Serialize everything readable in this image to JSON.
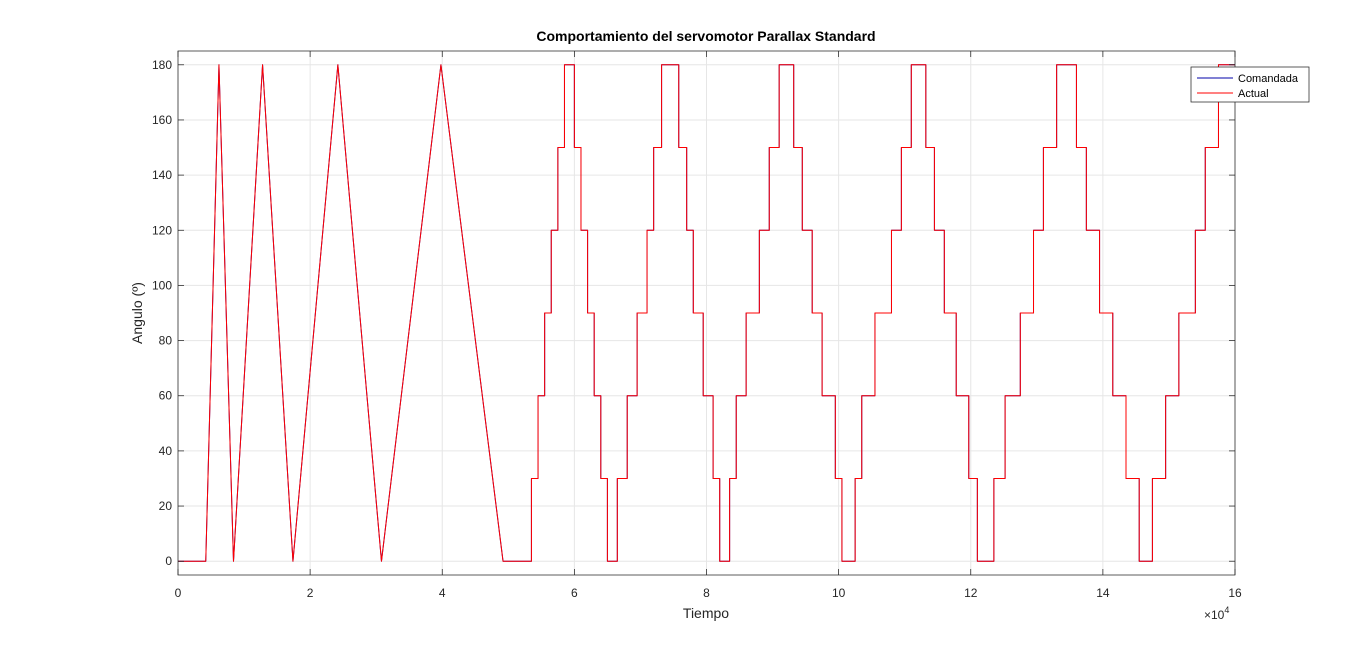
{
  "chart_data": {
    "type": "line",
    "title": "Comportamiento del servomotor Parallax Standard",
    "xlabel": "Tiempo",
    "ylabel": "Angulo (º)",
    "x_exponent_label": "×10",
    "x_exponent_power": "4",
    "xlim": [
      0,
      16
    ],
    "ylim": [
      -5,
      185
    ],
    "xticks": [
      0,
      2,
      4,
      6,
      8,
      10,
      12,
      14,
      16
    ],
    "xtick_labels": [
      "0",
      "2",
      "4",
      "6",
      "8",
      "10",
      "12",
      "14",
      "16"
    ],
    "yticks": [
      0,
      20,
      40,
      60,
      80,
      100,
      120,
      140,
      160,
      180
    ],
    "ytick_labels": [
      "0",
      "20",
      "40",
      "60",
      "80",
      "100",
      "120",
      "140",
      "160",
      "180"
    ],
    "grid": true,
    "legend_position": "top-right",
    "series": [
      {
        "name": "Comandada",
        "color": "#0000aa",
        "points": [
          [
            0,
            0
          ],
          [
            0.42,
            0
          ],
          [
            0.62,
            180
          ],
          [
            0.84,
            0
          ],
          [
            1.28,
            180
          ],
          [
            1.74,
            0
          ],
          [
            2.42,
            180
          ],
          [
            3.08,
            0
          ],
          [
            3.98,
            180
          ],
          [
            4.92,
            0
          ],
          [
            5.35,
            0
          ],
          [
            5.35,
            30
          ],
          [
            5.45,
            30
          ],
          [
            5.45,
            60
          ],
          [
            5.55,
            60
          ],
          [
            5.55,
            90
          ],
          [
            5.65,
            90
          ],
          [
            5.65,
            120
          ],
          [
            5.75,
            120
          ],
          [
            5.75,
            150
          ],
          [
            5.85,
            150
          ],
          [
            5.85,
            180
          ],
          [
            6.0,
            180
          ],
          [
            6.0,
            150
          ],
          [
            6.1,
            150
          ],
          [
            6.1,
            120
          ],
          [
            6.2,
            120
          ],
          [
            6.2,
            90
          ],
          [
            6.3,
            90
          ],
          [
            6.3,
            60
          ],
          [
            6.4,
            60
          ],
          [
            6.4,
            30
          ],
          [
            6.5,
            30
          ],
          [
            6.5,
            0
          ],
          [
            6.65,
            0
          ],
          [
            6.65,
            30
          ],
          [
            6.8,
            30
          ],
          [
            6.8,
            60
          ],
          [
            6.95,
            60
          ],
          [
            6.95,
            90
          ],
          [
            7.1,
            90
          ],
          [
            7.1,
            120
          ],
          [
            7.2,
            120
          ],
          [
            7.2,
            150
          ],
          [
            7.32,
            150
          ],
          [
            7.32,
            180
          ],
          [
            7.58,
            180
          ],
          [
            7.58,
            150
          ],
          [
            7.7,
            150
          ],
          [
            7.7,
            120
          ],
          [
            7.8,
            120
          ],
          [
            7.8,
            90
          ],
          [
            7.95,
            90
          ],
          [
            7.95,
            60
          ],
          [
            8.1,
            60
          ],
          [
            8.1,
            30
          ],
          [
            8.2,
            30
          ],
          [
            8.2,
            0
          ],
          [
            8.35,
            0
          ],
          [
            8.35,
            30
          ],
          [
            8.45,
            30
          ],
          [
            8.45,
            60
          ],
          [
            8.6,
            60
          ],
          [
            8.6,
            90
          ],
          [
            8.8,
            90
          ],
          [
            8.8,
            120
          ],
          [
            8.95,
            120
          ],
          [
            8.95,
            150
          ],
          [
            9.1,
            150
          ],
          [
            9.1,
            180
          ],
          [
            9.32,
            180
          ],
          [
            9.32,
            150
          ],
          [
            9.45,
            150
          ],
          [
            9.45,
            120
          ],
          [
            9.6,
            120
          ],
          [
            9.6,
            90
          ],
          [
            9.75,
            90
          ],
          [
            9.75,
            60
          ],
          [
            9.95,
            60
          ],
          [
            9.95,
            30
          ],
          [
            10.05,
            30
          ],
          [
            10.05,
            0
          ],
          [
            10.25,
            0
          ],
          [
            10.25,
            30
          ],
          [
            10.35,
            30
          ],
          [
            10.35,
            60
          ],
          [
            10.55,
            60
          ],
          [
            10.55,
            90
          ],
          [
            10.8,
            90
          ],
          [
            10.8,
            120
          ],
          [
            10.95,
            120
          ],
          [
            10.95,
            150
          ],
          [
            11.1,
            150
          ],
          [
            11.1,
            180
          ],
          [
            11.32,
            180
          ],
          [
            11.32,
            150
          ],
          [
            11.45,
            150
          ],
          [
            11.45,
            120
          ],
          [
            11.6,
            120
          ],
          [
            11.6,
            90
          ],
          [
            11.78,
            90
          ],
          [
            11.78,
            60
          ],
          [
            11.97,
            60
          ],
          [
            11.97,
            30
          ],
          [
            12.1,
            30
          ],
          [
            12.1,
            0
          ],
          [
            12.35,
            0
          ],
          [
            12.35,
            30
          ],
          [
            12.52,
            30
          ],
          [
            12.52,
            60
          ],
          [
            12.75,
            60
          ],
          [
            12.75,
            90
          ],
          [
            12.95,
            90
          ],
          [
            12.95,
            120
          ],
          [
            13.1,
            120
          ],
          [
            13.1,
            150
          ],
          [
            13.3,
            150
          ],
          [
            13.3,
            180
          ],
          [
            13.6,
            180
          ],
          [
            13.6,
            150
          ],
          [
            13.75,
            150
          ],
          [
            13.75,
            120
          ],
          [
            13.95,
            120
          ],
          [
            13.95,
            90
          ],
          [
            14.15,
            90
          ],
          [
            14.15,
            60
          ],
          [
            14.35,
            60
          ],
          [
            14.35,
            30
          ],
          [
            14.55,
            30
          ],
          [
            14.55,
            0
          ],
          [
            14.75,
            0
          ],
          [
            14.75,
            30
          ],
          [
            14.95,
            30
          ],
          [
            14.95,
            60
          ],
          [
            15.15,
            60
          ],
          [
            15.15,
            90
          ],
          [
            15.4,
            90
          ],
          [
            15.4,
            120
          ],
          [
            15.55,
            120
          ],
          [
            15.55,
            150
          ],
          [
            15.75,
            150
          ],
          [
            15.75,
            180
          ],
          [
            16.0,
            180
          ]
        ]
      },
      {
        "name": "Actual",
        "color": "#ff0000",
        "points": [
          [
            0,
            0
          ],
          [
            0.42,
            0
          ],
          [
            0.62,
            180
          ],
          [
            0.84,
            0
          ],
          [
            1.28,
            180
          ],
          [
            1.74,
            0
          ],
          [
            2.42,
            180
          ],
          [
            3.08,
            0
          ],
          [
            3.98,
            180
          ],
          [
            4.92,
            0
          ],
          [
            5.35,
            0
          ],
          [
            5.35,
            30
          ],
          [
            5.45,
            30
          ],
          [
            5.45,
            60
          ],
          [
            5.55,
            60
          ],
          [
            5.55,
            90
          ],
          [
            5.65,
            90
          ],
          [
            5.65,
            120
          ],
          [
            5.75,
            120
          ],
          [
            5.75,
            150
          ],
          [
            5.85,
            150
          ],
          [
            5.85,
            180
          ],
          [
            6.0,
            180
          ],
          [
            6.0,
            150
          ],
          [
            6.1,
            150
          ],
          [
            6.1,
            120
          ],
          [
            6.2,
            120
          ],
          [
            6.2,
            90
          ],
          [
            6.3,
            90
          ],
          [
            6.3,
            60
          ],
          [
            6.4,
            60
          ],
          [
            6.4,
            30
          ],
          [
            6.5,
            30
          ],
          [
            6.5,
            0
          ],
          [
            6.65,
            0
          ],
          [
            6.65,
            30
          ],
          [
            6.8,
            30
          ],
          [
            6.8,
            60
          ],
          [
            6.95,
            60
          ],
          [
            6.95,
            90
          ],
          [
            7.1,
            90
          ],
          [
            7.1,
            120
          ],
          [
            7.2,
            120
          ],
          [
            7.2,
            150
          ],
          [
            7.32,
            150
          ],
          [
            7.32,
            180
          ],
          [
            7.58,
            180
          ],
          [
            7.58,
            150
          ],
          [
            7.7,
            150
          ],
          [
            7.7,
            120
          ],
          [
            7.8,
            120
          ],
          [
            7.8,
            90
          ],
          [
            7.95,
            90
          ],
          [
            7.95,
            60
          ],
          [
            8.1,
            60
          ],
          [
            8.1,
            30
          ],
          [
            8.2,
            30
          ],
          [
            8.2,
            0
          ],
          [
            8.35,
            0
          ],
          [
            8.35,
            30
          ],
          [
            8.45,
            30
          ],
          [
            8.45,
            60
          ],
          [
            8.6,
            60
          ],
          [
            8.6,
            90
          ],
          [
            8.8,
            90
          ],
          [
            8.8,
            120
          ],
          [
            8.95,
            120
          ],
          [
            8.95,
            150
          ],
          [
            9.1,
            150
          ],
          [
            9.1,
            180
          ],
          [
            9.32,
            180
          ],
          [
            9.32,
            150
          ],
          [
            9.45,
            150
          ],
          [
            9.45,
            120
          ],
          [
            9.6,
            120
          ],
          [
            9.6,
            90
          ],
          [
            9.75,
            90
          ],
          [
            9.75,
            60
          ],
          [
            9.95,
            60
          ],
          [
            9.95,
            30
          ],
          [
            10.05,
            30
          ],
          [
            10.05,
            0
          ],
          [
            10.25,
            0
          ],
          [
            10.25,
            30
          ],
          [
            10.35,
            30
          ],
          [
            10.35,
            60
          ],
          [
            10.55,
            60
          ],
          [
            10.55,
            90
          ],
          [
            10.8,
            90
          ],
          [
            10.8,
            120
          ],
          [
            10.95,
            120
          ],
          [
            10.95,
            150
          ],
          [
            11.1,
            150
          ],
          [
            11.1,
            180
          ],
          [
            11.32,
            180
          ],
          [
            11.32,
            150
          ],
          [
            11.45,
            150
          ],
          [
            11.45,
            120
          ],
          [
            11.6,
            120
          ],
          [
            11.6,
            90
          ],
          [
            11.78,
            90
          ],
          [
            11.78,
            60
          ],
          [
            11.97,
            60
          ],
          [
            11.97,
            30
          ],
          [
            12.1,
            30
          ],
          [
            12.1,
            0
          ],
          [
            12.35,
            0
          ],
          [
            12.35,
            30
          ],
          [
            12.52,
            30
          ],
          [
            12.52,
            60
          ],
          [
            12.75,
            60
          ],
          [
            12.75,
            90
          ],
          [
            12.95,
            90
          ],
          [
            12.95,
            120
          ],
          [
            13.1,
            120
          ],
          [
            13.1,
            150
          ],
          [
            13.3,
            150
          ],
          [
            13.3,
            180
          ],
          [
            13.6,
            180
          ],
          [
            13.6,
            150
          ],
          [
            13.75,
            150
          ],
          [
            13.75,
            120
          ],
          [
            13.95,
            120
          ],
          [
            13.95,
            90
          ],
          [
            14.15,
            90
          ],
          [
            14.15,
            60
          ],
          [
            14.35,
            60
          ],
          [
            14.35,
            30
          ],
          [
            14.55,
            30
          ],
          [
            14.55,
            0
          ],
          [
            14.75,
            0
          ],
          [
            14.75,
            30
          ],
          [
            14.95,
            30
          ],
          [
            14.95,
            60
          ],
          [
            15.15,
            60
          ],
          [
            15.15,
            90
          ],
          [
            15.4,
            90
          ],
          [
            15.4,
            120
          ],
          [
            15.55,
            120
          ],
          [
            15.55,
            150
          ],
          [
            15.75,
            150
          ],
          [
            15.75,
            180
          ],
          [
            16.0,
            180
          ]
        ]
      }
    ]
  }
}
